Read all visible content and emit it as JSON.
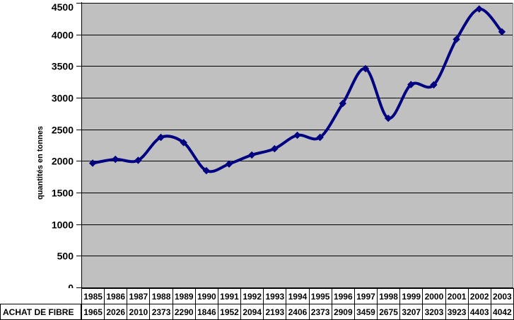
{
  "chart_data": {
    "type": "line",
    "title": "",
    "categories": [
      "1985",
      "1986",
      "1987",
      "1988",
      "1989",
      "1990",
      "1991",
      "1992",
      "1993",
      "1994",
      "1995",
      "1996",
      "1997",
      "1998",
      "1999",
      "2000",
      "2001",
      "2002",
      "2003"
    ],
    "series": [
      {
        "name": "ACHAT DE FIBRE",
        "values": [
          1965,
          2026,
          2010,
          2373,
          2290,
          1846,
          1952,
          2094,
          2193,
          2406,
          2373,
          2909,
          3459,
          2675,
          3207,
          3203,
          3923,
          4403,
          4042
        ],
        "color": "#000080",
        "marker": "diamond",
        "smoothed": true
      }
    ],
    "xlabel": "",
    "ylabel": "quantités en tonnes",
    "ylim": [
      0,
      4500
    ],
    "ytick_step": 500,
    "ytick_labels": [
      "0",
      "500",
      "1000",
      "1500",
      "2000",
      "2500",
      "3000",
      "3500",
      "4000",
      "4500"
    ],
    "grid": "horizontal",
    "grid_color": "#000000",
    "plot_background": "#c0c0c0",
    "plot_right_border_color": "#808080",
    "legend_position": "none",
    "data_table_shown": true
  }
}
